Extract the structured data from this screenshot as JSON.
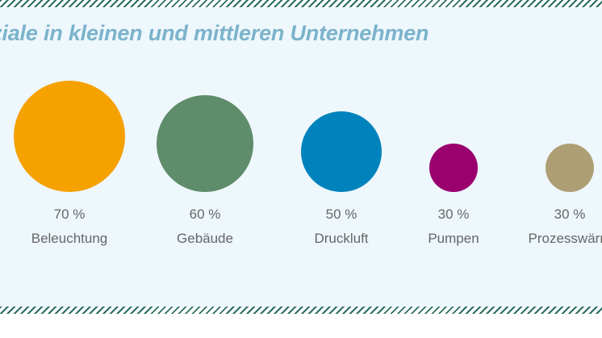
{
  "chart_data": {
    "type": "bubble",
    "title": "enziale in kleinen und mittleren Unternehmen",
    "categories": [
      "Beleuchtung",
      "Gebäude",
      "Druckluft",
      "Pumpen",
      "Prozesswärm"
    ],
    "values": [
      70,
      60,
      50,
      30,
      30
    ],
    "value_labels": [
      "70 %",
      "60 %",
      "50 %",
      "30 %",
      "30 %"
    ],
    "unit": "%",
    "colors": [
      "#f5a100",
      "#5f8c6a",
      "#0083bc",
      "#9a006e",
      "#ad9e74"
    ],
    "grid": false,
    "legend": "none"
  },
  "colors": {
    "background": "#eef7fc",
    "title": "#7bb3cb",
    "label": "#666666",
    "stripe": "#2b6e62"
  }
}
